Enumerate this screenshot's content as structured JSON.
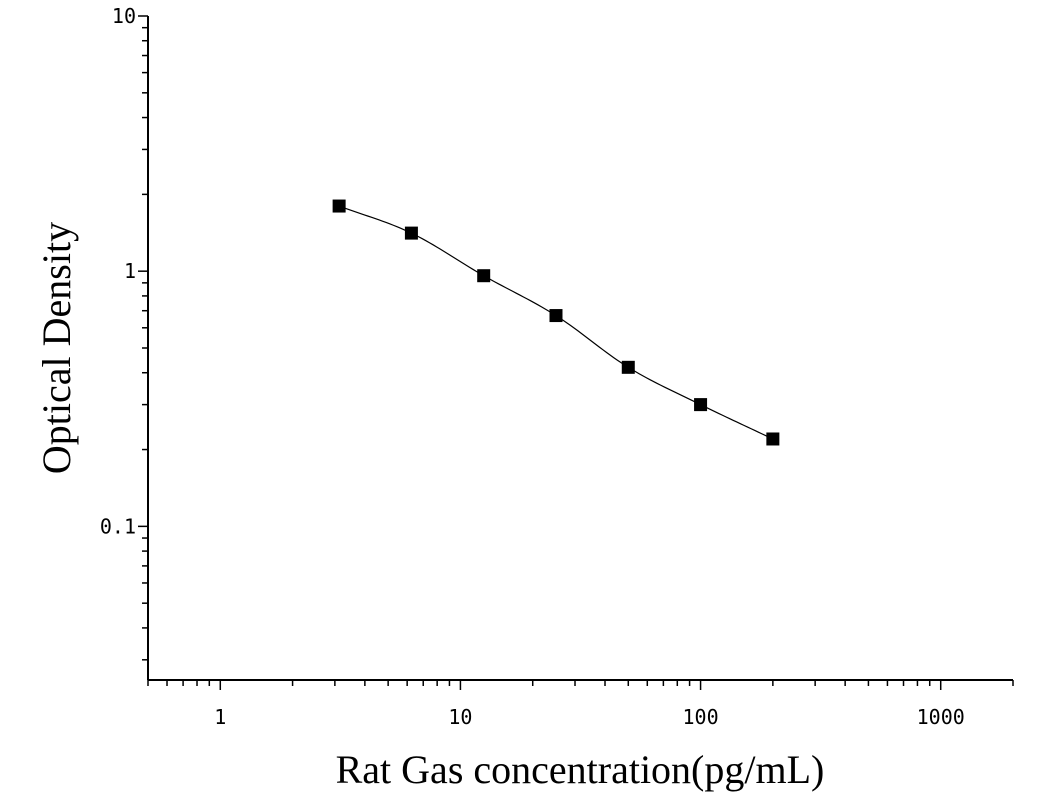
{
  "chart_data": {
    "type": "scatter",
    "title": "",
    "xlabel": "Rat Gas concentration(pg/mL)",
    "ylabel": "Optical Density",
    "x_scale": "log",
    "y_scale": "log",
    "xlim": [
      0.5,
      2000
    ],
    "ylim": [
      0.025,
      10
    ],
    "x_tick_labels": [
      "1",
      "10",
      "100",
      "1000"
    ],
    "x_tick_values": [
      1,
      10,
      100,
      1000
    ],
    "y_tick_labels": [
      "0.1",
      "1",
      "10"
    ],
    "y_tick_values": [
      0.1,
      1,
      10
    ],
    "grid": false,
    "legend": "none",
    "marker": "square",
    "fit_curve": "smooth",
    "series": [
      {
        "x": [
          3.125,
          6.25,
          12.5,
          25,
          50,
          100,
          200
        ],
        "y": [
          1.8,
          1.41,
          0.96,
          0.67,
          0.42,
          0.3,
          0.22
        ]
      }
    ],
    "color": "#000000"
  }
}
